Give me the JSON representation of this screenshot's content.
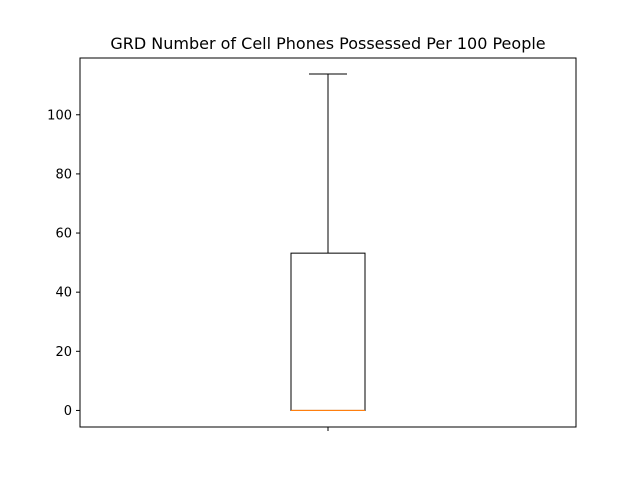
{
  "chart_data": {
    "type": "box",
    "title": "GRD Number of Cell Phones Possessed Per 100 People",
    "xlabel": "",
    "ylabel": "",
    "ylim": [
      -5.6,
      119.2
    ],
    "yticks": [
      0,
      20,
      40,
      60,
      80,
      100
    ],
    "grid": false,
    "series": [
      {
        "whisker_low": 0,
        "q1": 0,
        "median": 0,
        "q3": 53.2,
        "whisker_high": 113.8
      }
    ],
    "colors": {
      "box": "#000000",
      "median": "#ff7f0e"
    }
  }
}
